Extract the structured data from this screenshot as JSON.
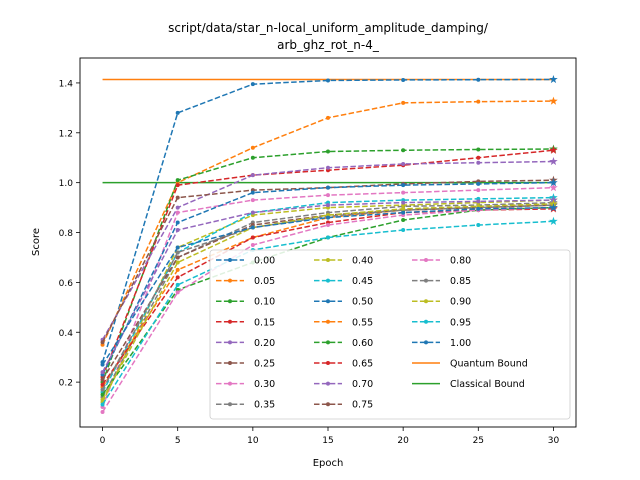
{
  "chart_data": {
    "type": "line",
    "title_lines": [
      "script/data/star_n-local_uniform_amplitude_damping/",
      "arb_ghz_rot_n-4_"
    ],
    "xlabel": "Epoch",
    "ylabel": "Score",
    "xlim": [
      -1.5,
      31.5
    ],
    "ylim": [
      0.02,
      1.5
    ],
    "xticks": [
      0,
      5,
      10,
      15,
      20,
      25,
      30
    ],
    "yticks": [
      0.2,
      0.4,
      0.6,
      0.8,
      1.0,
      1.2,
      1.4
    ],
    "ytick_labels": [
      "0.2",
      "0.4",
      "0.6",
      "0.8",
      "1.0",
      "1.2",
      "1.4"
    ],
    "grid": false,
    "legend_placement": "lower-right",
    "x": [
      0,
      5,
      10,
      15,
      20,
      25,
      30
    ],
    "series": [
      {
        "name": "0.00",
        "color": "#1f77b4",
        "values": [
          0.28,
          1.28,
          1.395,
          1.41,
          1.412,
          1.413,
          1.414
        ]
      },
      {
        "name": "0.05",
        "color": "#ff7f0e",
        "values": [
          0.35,
          1.0,
          1.14,
          1.26,
          1.32,
          1.325,
          1.327
        ]
      },
      {
        "name": "0.10",
        "color": "#2ca02c",
        "values": [
          0.2,
          1.01,
          1.1,
          1.125,
          1.13,
          1.133,
          1.135
        ]
      },
      {
        "name": "0.15",
        "color": "#d62728",
        "values": [
          0.22,
          0.99,
          1.03,
          1.05,
          1.07,
          1.1,
          1.13
        ]
      },
      {
        "name": "0.20",
        "color": "#9467bd",
        "values": [
          0.37,
          0.9,
          1.03,
          1.06,
          1.075,
          1.08,
          1.085
        ]
      },
      {
        "name": "0.25",
        "color": "#8c564b",
        "values": [
          0.36,
          0.94,
          0.97,
          0.98,
          0.995,
          1.005,
          1.01
        ]
      },
      {
        "name": "0.30",
        "color": "#e377c2",
        "values": [
          0.1,
          0.88,
          0.93,
          0.95,
          0.96,
          0.97,
          0.98
        ]
      },
      {
        "name": "0.35",
        "color": "#7f7f7f",
        "values": [
          0.14,
          0.7,
          0.84,
          0.88,
          0.905,
          0.91,
          0.92
        ]
      },
      {
        "name": "0.40",
        "color": "#bcbd22",
        "values": [
          0.12,
          0.74,
          0.87,
          0.9,
          0.91,
          0.92,
          0.93
        ]
      },
      {
        "name": "0.45",
        "color": "#17becf",
        "values": [
          0.16,
          0.72,
          0.88,
          0.92,
          0.93,
          0.935,
          0.94
        ]
      },
      {
        "name": "0.50",
        "color": "#1f77b4",
        "values": [
          0.23,
          0.84,
          0.96,
          0.98,
          0.99,
          0.995,
          1.0
        ]
      },
      {
        "name": "0.55",
        "color": "#ff7f0e",
        "values": [
          0.18,
          0.65,
          0.78,
          0.86,
          0.89,
          0.9,
          0.91
        ]
      },
      {
        "name": "0.60",
        "color": "#2ca02c",
        "values": [
          0.15,
          0.57,
          0.68,
          0.78,
          0.85,
          0.89,
          0.9
        ]
      },
      {
        "name": "0.65",
        "color": "#d62728",
        "values": [
          0.19,
          0.62,
          0.78,
          0.84,
          0.88,
          0.89,
          0.895
        ]
      },
      {
        "name": "0.70",
        "color": "#9467bd",
        "values": [
          0.24,
          0.81,
          0.88,
          0.91,
          0.92,
          0.925,
          0.93
        ]
      },
      {
        "name": "0.75",
        "color": "#8c564b",
        "values": [
          0.21,
          0.7,
          0.83,
          0.87,
          0.89,
          0.9,
          0.91
        ]
      },
      {
        "name": "0.80",
        "color": "#e377c2",
        "values": [
          0.08,
          0.56,
          0.75,
          0.83,
          0.87,
          0.89,
          0.9
        ]
      },
      {
        "name": "0.85",
        "color": "#7f7f7f",
        "values": [
          0.17,
          0.72,
          0.82,
          0.865,
          0.89,
          0.9,
          0.91
        ]
      },
      {
        "name": "0.90",
        "color": "#bcbd22",
        "values": [
          0.13,
          0.68,
          0.82,
          0.87,
          0.895,
          0.905,
          0.915
        ]
      },
      {
        "name": "0.95",
        "color": "#17becf",
        "values": [
          0.11,
          0.59,
          0.73,
          0.78,
          0.81,
          0.83,
          0.845
        ]
      },
      {
        "name": "1.00",
        "color": "#1f77b4",
        "values": [
          0.27,
          0.74,
          0.82,
          0.86,
          0.88,
          0.895,
          0.9
        ]
      }
    ],
    "bounds": [
      {
        "name": "Quantum Bound",
        "color": "#ff7f0e",
        "value": 1.414
      },
      {
        "name": "Classical Bound",
        "color": "#2ca02c",
        "value": 1.0
      }
    ]
  }
}
